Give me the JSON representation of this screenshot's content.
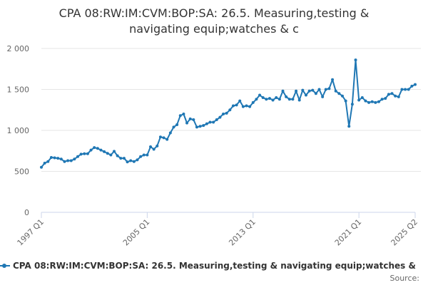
{
  "chart_data": {
    "type": "line",
    "title_lines": [
      "CPA 08:RW:IM:CVM:BOP:SA: 26.5. Measuring,testing &",
      "navigating equip;watches & c"
    ],
    "series_name": "CPA 08:RW:IM:CVM:BOP:SA: 26.5. Measuring,testing & navigating equip;watches &",
    "source_label": "Source:",
    "xlabel": "",
    "ylabel": "",
    "ylim": [
      0,
      2000
    ],
    "y_ticks": [
      0,
      500,
      1000,
      1500,
      2000
    ],
    "y_tick_labels": [
      "0",
      "500",
      "1 000",
      "1 500",
      "2 000"
    ],
    "x_tick_labels": [
      "1997 Q1",
      "2005 Q1",
      "2013 Q1",
      "2021 Q1",
      "2025 Q2"
    ],
    "x_tick_positions": [
      "1997 Q1",
      "2005 Q1",
      "2013 Q1",
      "2021 Q1",
      "2025 Q2"
    ],
    "grid": "horizontal",
    "legend_position": "bottom",
    "line_color": "#1f77b4",
    "x": [
      "1997 Q1",
      "1997 Q2",
      "1997 Q3",
      "1997 Q4",
      "1998 Q1",
      "1998 Q2",
      "1998 Q3",
      "1998 Q4",
      "1999 Q1",
      "1999 Q2",
      "1999 Q3",
      "1999 Q4",
      "2000 Q1",
      "2000 Q2",
      "2000 Q3",
      "2000 Q4",
      "2001 Q1",
      "2001 Q2",
      "2001 Q3",
      "2001 Q4",
      "2002 Q1",
      "2002 Q2",
      "2002 Q3",
      "2002 Q4",
      "2003 Q1",
      "2003 Q2",
      "2003 Q3",
      "2003 Q4",
      "2004 Q1",
      "2004 Q2",
      "2004 Q3",
      "2004 Q4",
      "2005 Q1",
      "2005 Q2",
      "2005 Q3",
      "2005 Q4",
      "2006 Q1",
      "2006 Q2",
      "2006 Q3",
      "2006 Q4",
      "2007 Q1",
      "2007 Q2",
      "2007 Q3",
      "2007 Q4",
      "2008 Q1",
      "2008 Q2",
      "2008 Q3",
      "2008 Q4",
      "2009 Q1",
      "2009 Q2",
      "2009 Q3",
      "2009 Q4",
      "2010 Q1",
      "2010 Q2",
      "2010 Q3",
      "2010 Q4",
      "2011 Q1",
      "2011 Q2",
      "2011 Q3",
      "2011 Q4",
      "2012 Q1",
      "2012 Q2",
      "2012 Q3",
      "2012 Q4",
      "2013 Q1",
      "2013 Q2",
      "2013 Q3",
      "2013 Q4",
      "2014 Q1",
      "2014 Q2",
      "2014 Q3",
      "2014 Q4",
      "2015 Q1",
      "2015 Q2",
      "2015 Q3",
      "2015 Q4",
      "2016 Q1",
      "2016 Q2",
      "2016 Q3",
      "2016 Q4",
      "2017 Q1",
      "2017 Q2",
      "2017 Q3",
      "2017 Q4",
      "2018 Q1",
      "2018 Q2",
      "2018 Q3",
      "2018 Q4",
      "2019 Q1",
      "2019 Q2",
      "2019 Q3",
      "2019 Q4",
      "2020 Q1",
      "2020 Q2",
      "2020 Q3",
      "2020 Q4",
      "2021 Q1",
      "2021 Q2",
      "2021 Q3",
      "2021 Q4",
      "2022 Q1",
      "2022 Q2",
      "2022 Q3",
      "2022 Q4",
      "2023 Q1",
      "2023 Q2",
      "2023 Q3",
      "2023 Q4",
      "2024 Q1",
      "2024 Q2",
      "2024 Q3",
      "2024 Q4",
      "2025 Q1",
      "2025 Q2"
    ],
    "values": [
      550,
      600,
      620,
      670,
      665,
      660,
      650,
      620,
      630,
      630,
      650,
      680,
      710,
      715,
      715,
      760,
      790,
      780,
      760,
      740,
      720,
      700,
      745,
      690,
      660,
      660,
      615,
      630,
      620,
      640,
      680,
      700,
      700,
      800,
      770,
      810,
      920,
      910,
      890,
      970,
      1040,
      1070,
      1180,
      1200,
      1090,
      1140,
      1130,
      1040,
      1050,
      1060,
      1080,
      1100,
      1100,
      1130,
      1160,
      1200,
      1210,
      1250,
      1300,
      1310,
      1360,
      1290,
      1300,
      1290,
      1340,
      1380,
      1430,
      1400,
      1380,
      1390,
      1370,
      1400,
      1380,
      1480,
      1410,
      1380,
      1380,
      1480,
      1370,
      1490,
      1430,
      1480,
      1490,
      1450,
      1500,
      1410,
      1500,
      1510,
      1620,
      1480,
      1450,
      1420,
      1360,
      1050,
      1320,
      1860,
      1370,
      1400,
      1360,
      1340,
      1350,
      1340,
      1350,
      1380,
      1390,
      1440,
      1450,
      1420,
      1410,
      1500,
      1500,
      1500,
      1540,
      1560
    ]
  }
}
